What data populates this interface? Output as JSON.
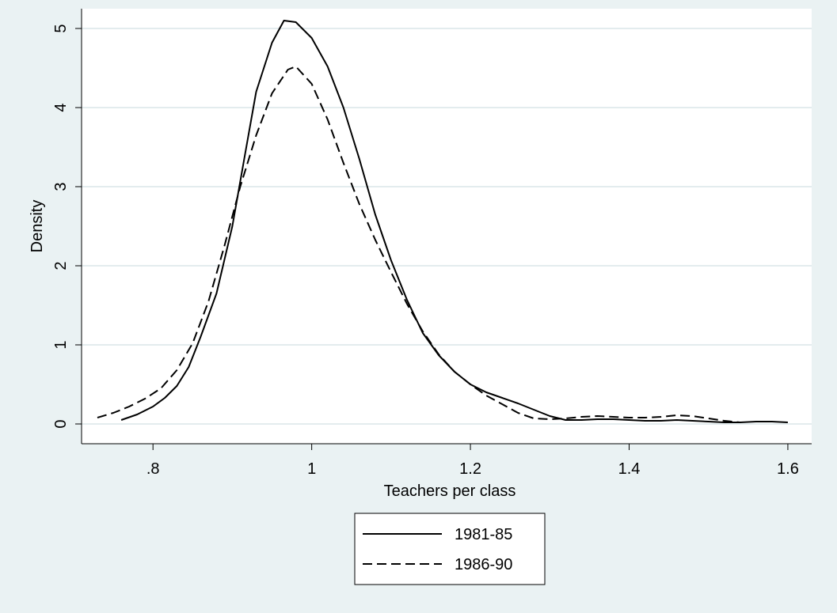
{
  "chart_data": {
    "type": "line",
    "title": "",
    "xlabel": "Teachers per class",
    "ylabel": "Density",
    "xlim": [
      0.71,
      1.63
    ],
    "ylim": [
      -0.25,
      5.25
    ],
    "x_ticks": [
      0.8,
      1.0,
      1.2,
      1.4,
      1.6
    ],
    "x_tick_labels": [
      ".8",
      "1",
      "1.2",
      "1.4",
      "1.6"
    ],
    "y_ticks": [
      0,
      1,
      2,
      3,
      4,
      5
    ],
    "y_tick_labels": [
      "0",
      "1",
      "2",
      "3",
      "4",
      "5"
    ],
    "grid": true,
    "legend_position": "bottom",
    "colors": {
      "background": "#eaf2f3",
      "plot_bg": "#ffffff",
      "grid": "#e3ecee",
      "line": "#000000"
    },
    "series": [
      {
        "name": "1981-85",
        "style": "solid",
        "x": [
          0.76,
          0.78,
          0.8,
          0.815,
          0.83,
          0.845,
          0.86,
          0.88,
          0.9,
          0.915,
          0.93,
          0.95,
          0.965,
          0.98,
          1.0,
          1.02,
          1.04,
          1.06,
          1.08,
          1.1,
          1.12,
          1.14,
          1.16,
          1.18,
          1.2,
          1.22,
          1.24,
          1.26,
          1.28,
          1.3,
          1.32,
          1.34,
          1.36,
          1.38,
          1.4,
          1.42,
          1.44,
          1.46,
          1.48,
          1.5,
          1.52,
          1.54,
          1.56,
          1.58,
          1.6
        ],
        "y": [
          0.05,
          0.12,
          0.22,
          0.33,
          0.48,
          0.72,
          1.1,
          1.65,
          2.5,
          3.35,
          4.2,
          4.82,
          5.1,
          5.08,
          4.88,
          4.52,
          4.0,
          3.35,
          2.65,
          2.07,
          1.57,
          1.15,
          0.87,
          0.66,
          0.5,
          0.4,
          0.33,
          0.26,
          0.18,
          0.1,
          0.05,
          0.05,
          0.06,
          0.06,
          0.05,
          0.04,
          0.04,
          0.05,
          0.04,
          0.03,
          0.02,
          0.02,
          0.03,
          0.03,
          0.02
        ]
      },
      {
        "name": "1986-90",
        "style": "dashed",
        "x": [
          0.73,
          0.75,
          0.77,
          0.79,
          0.81,
          0.83,
          0.85,
          0.87,
          0.89,
          0.91,
          0.93,
          0.95,
          0.97,
          0.98,
          1.0,
          1.02,
          1.04,
          1.06,
          1.08,
          1.1,
          1.12,
          1.14,
          1.16,
          1.18,
          1.2,
          1.22,
          1.24,
          1.26,
          1.28,
          1.3,
          1.32,
          1.34,
          1.36,
          1.38,
          1.4,
          1.42,
          1.44,
          1.46,
          1.48,
          1.5,
          1.52,
          1.54
        ],
        "y": [
          0.08,
          0.14,
          0.22,
          0.32,
          0.45,
          0.68,
          1.02,
          1.55,
          2.25,
          3.0,
          3.65,
          4.18,
          4.48,
          4.52,
          4.3,
          3.85,
          3.3,
          2.78,
          2.33,
          1.92,
          1.52,
          1.17,
          0.88,
          0.66,
          0.5,
          0.36,
          0.25,
          0.14,
          0.07,
          0.06,
          0.07,
          0.09,
          0.1,
          0.09,
          0.08,
          0.08,
          0.09,
          0.11,
          0.1,
          0.07,
          0.04,
          0.02
        ]
      }
    ]
  }
}
